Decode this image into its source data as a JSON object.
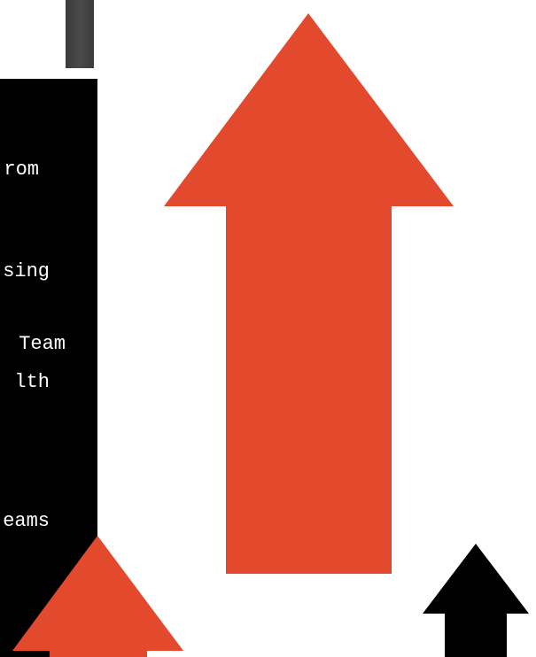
{
  "panel": {
    "lines": [
      "rom",
      "sing",
      "Team",
      "lth",
      "eams"
    ]
  },
  "colors": {
    "arrow_orange": "#E2492D",
    "arrow_black": "#000000",
    "panel_background": "#000000",
    "panel_text": "#FFFFFF",
    "bar_gray": "#424242",
    "background": "#FFFFFF"
  }
}
